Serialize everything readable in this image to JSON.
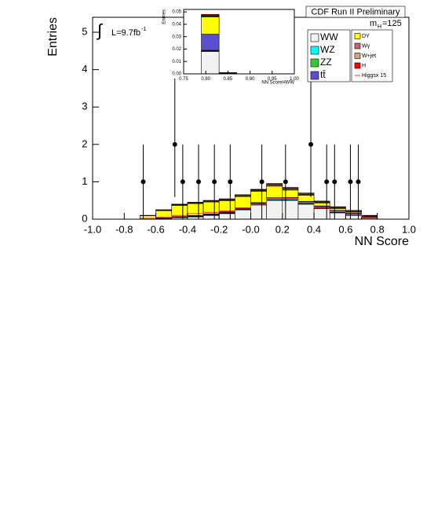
{
  "chart_data": [
    {
      "type": "histogram",
      "title": "CDF Run II Preliminary",
      "x_label": "NN Score",
      "y_label": "Entries",
      "lumi": {
        "integral": "∫",
        "text": "L=9.7fb",
        "sup": "-1"
      },
      "mass": {
        "text": "m",
        "sub": "H",
        "rest": "=125"
      },
      "bins": [
        -0.7,
        -0.6,
        -0.5,
        -0.4,
        -0.3,
        -0.2,
        -0.1,
        0.0,
        0.1,
        0.2,
        0.3,
        0.4,
        0.5,
        0.6,
        0.7,
        0.8
      ],
      "xlim": [
        -1,
        1
      ],
      "ylim": [
        0,
        5.4
      ],
      "xticks": [
        {
          "value": -1,
          "label": "-1.0"
        },
        -0.8,
        -0.6,
        -0.4,
        -0.2,
        {
          "value": 0,
          "label": "-0.0"
        },
        0.2,
        0.4,
        0.6,
        0.8,
        {
          "value": 1,
          "label": "1.0"
        }
      ],
      "yticks": [
        0,
        1,
        2,
        3,
        4,
        5
      ],
      "series": [
        {
          "name": "WW",
          "color": "#f2f2f2",
          "values": [
            0.01,
            0.02,
            0.04,
            0.06,
            0.1,
            0.15,
            0.25,
            0.38,
            0.5,
            0.5,
            0.4,
            0.28,
            0.17,
            0.1,
            0.03
          ]
        },
        {
          "name": "WZ",
          "color": "#00ffff",
          "values": [
            0.002,
            0.004,
            0.006,
            0.008,
            0.01,
            0.012,
            0.015,
            0.018,
            0.02,
            0.02,
            0.018,
            0.015,
            0.012,
            0.01,
            0.005
          ]
        },
        {
          "name": "ZZ",
          "color": "#33cc33",
          "values": [
            0.003,
            0.005,
            0.008,
            0.01,
            0.012,
            0.015,
            0.02,
            0.025,
            0.03,
            0.03,
            0.025,
            0.02,
            0.015,
            0.01,
            0.005
          ]
        },
        {
          "name": "tt̄",
          "color": "#5a4fcf",
          "values": [
            0.005,
            0.01,
            0.015,
            0.02,
            0.02,
            0.02,
            0.02,
            0.02,
            0.025,
            0.03,
            0.035,
            0.04,
            0.04,
            0.04,
            0.03
          ]
        },
        {
          "name": "DY",
          "color": "#ffff00",
          "values": [
            0.07,
            0.19,
            0.3,
            0.32,
            0.32,
            0.3,
            0.3,
            0.3,
            0.31,
            0.2,
            0.16,
            0.08,
            0.05,
            0.03,
            0.01
          ]
        },
        {
          "name": "Wγ",
          "color": "#cc6666",
          "values": [
            0.005,
            0.01,
            0.015,
            0.015,
            0.02,
            0.02,
            0.02,
            0.025,
            0.03,
            0.03,
            0.025,
            0.02,
            0.02,
            0.02,
            0.01
          ]
        },
        {
          "name": "W+jet",
          "color": "#d2a679",
          "values": [
            0.005,
            0.01,
            0.015,
            0.015,
            0.015,
            0.02,
            0.02,
            0.02,
            0.025,
            0.025,
            0.025,
            0.02,
            0.02,
            0.02,
            0.01
          ]
        },
        {
          "name": "H",
          "color": "#ff0000",
          "values": [
            0.002,
            0.003,
            0.004,
            0.005,
            0.006,
            0.008,
            0.01,
            0.012,
            0.015,
            0.015,
            0.012,
            0.01,
            0.007,
            0.005,
            0.002
          ]
        },
        {
          "name": "Higgsx 15",
          "color": "#ff3333",
          "style": "line",
          "values": [
            0.02,
            0.05,
            0.1,
            0.15,
            0.18,
            0.22,
            0.3,
            0.4,
            0.55,
            0.55,
            0.45,
            0.3,
            0.2,
            0.12,
            0.05
          ]
        }
      ],
      "points": {
        "x": [
          -0.68,
          -0.48,
          -0.43,
          -0.33,
          -0.23,
          -0.13,
          0.07,
          0.22,
          0.38,
          0.48,
          0.53,
          0.63,
          0.68
        ],
        "values": [
          1,
          2,
          1,
          1,
          1,
          1,
          1,
          1,
          2,
          1,
          1,
          1,
          1
        ],
        "error_up": [
          1,
          1.76,
          1,
          1,
          1,
          1,
          1,
          1,
          1.76,
          1,
          1,
          1,
          1
        ],
        "error_down": [
          1,
          1.41,
          1,
          1,
          1,
          1,
          1,
          1,
          1.41,
          1,
          1,
          1,
          1
        ]
      }
    },
    {
      "type": "histogram",
      "x_label": "NN ScoreHWW",
      "y_label": "Entries",
      "bins": [
        0.75,
        0.79,
        0.83,
        0.87,
        0.91,
        0.95,
        0.99
      ],
      "xlim": [
        0.75,
        1
      ],
      "ylim": [
        0,
        0.052
      ],
      "xticks": [
        0.75,
        {
          "value": 0.8,
          "label": "0.80"
        },
        0.85,
        {
          "value": 0.9,
          "label": "0.90"
        },
        0.95,
        {
          "value": 1,
          "label": "1.00"
        }
      ],
      "yticks": [
        {
          "value": 0,
          "label": "0.00"
        },
        0.01,
        0.02,
        0.03,
        0.04,
        0.05
      ],
      "series": [
        {
          "name": "WW",
          "color": "#f2f2f2",
          "values": [
            0,
            0.018,
            0.0004,
            0,
            0,
            0
          ]
        },
        {
          "name": "WZ",
          "color": "#00ffff",
          "values": [
            0,
            0.0005,
            0,
            0,
            0,
            0
          ]
        },
        {
          "name": "ZZ",
          "color": "#33cc33",
          "values": [
            0,
            0.0005,
            0,
            0,
            0,
            0
          ]
        },
        {
          "name": "tt̄",
          "color": "#5a4fcf",
          "values": [
            0,
            0.013,
            0.0003,
            0,
            0,
            0
          ]
        },
        {
          "name": "DY",
          "color": "#ffff00",
          "values": [
            0,
            0.014,
            0.0003,
            0,
            0,
            0
          ]
        },
        {
          "name": "Wγ",
          "color": "#cc6666",
          "values": [
            0,
            0.0005,
            0,
            0,
            0,
            0
          ]
        },
        {
          "name": "W+jet",
          "color": "#d2a679",
          "values": [
            0,
            0.0005,
            0,
            0,
            0,
            0
          ]
        },
        {
          "name": "H",
          "color": "#ff0000",
          "values": [
            0,
            0.001,
            0,
            0,
            0,
            0
          ]
        }
      ]
    }
  ]
}
